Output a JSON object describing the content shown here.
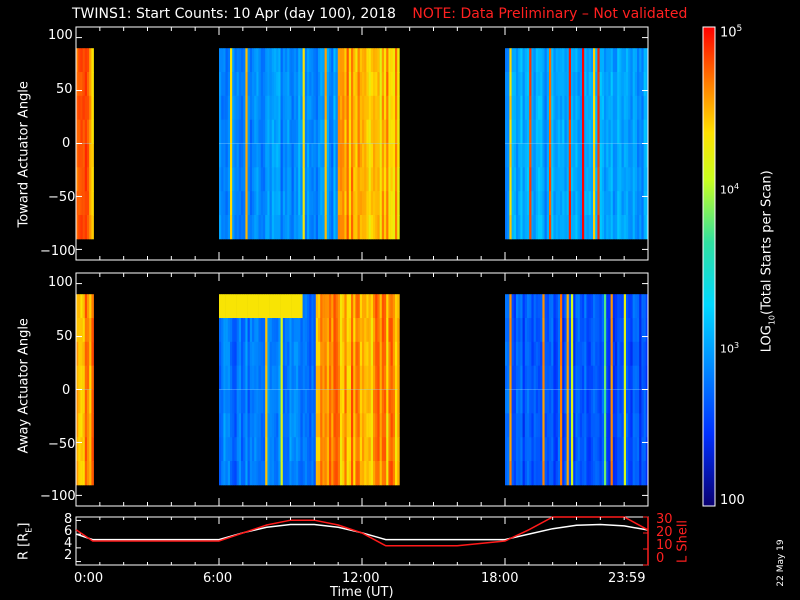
{
  "title": "TWINS1: Start Counts: 10 Apr (day 100), 2018",
  "note": "NOTE: Data Preliminary – Not validated",
  "date_stamp": "22 May 19",
  "chart_data": [
    {
      "type": "heatmap",
      "panel": "toward",
      "ylabel": "Toward Actuator Angle",
      "ylim": [
        -110,
        110
      ],
      "yticks": [
        100,
        50,
        0,
        -50,
        -100
      ],
      "angle_range": [
        -90,
        90
      ],
      "xlim_hours": [
        0,
        24
      ],
      "data_segments_hours": [
        [
          0.0,
          0.65
        ],
        [
          6.0,
          13.5
        ],
        [
          18.0,
          23.99
        ]
      ],
      "background_log10": {
        "seg1": 4.6,
        "seg2_blue_until": 10.9,
        "seg2_blue": 2.9,
        "seg2_orange": 4.5,
        "seg3": 3.0
      }
    },
    {
      "type": "heatmap",
      "panel": "away",
      "ylabel": "Away Actuator Angle",
      "ylim": [
        -110,
        110
      ],
      "yticks": [
        100,
        50,
        0,
        -50,
        -100
      ],
      "angle_range": [
        -90,
        90
      ],
      "xlim_hours": [
        0,
        24
      ],
      "data_segments_hours": [
        [
          0.0,
          0.65
        ],
        [
          6.0,
          13.5
        ],
        [
          18.0,
          23.99
        ]
      ],
      "background_log10": {
        "seg1": 4.6,
        "seg2_blue_until": 10.0,
        "seg2_blue": 2.8,
        "seg2_orange": 4.5,
        "seg3": 2.6
      }
    },
    {
      "type": "line",
      "panel": "orbit",
      "ylabel_left": "R [RE]",
      "ylabel_right": "L Shell",
      "yticks_left": [
        2,
        4,
        6,
        8
      ],
      "yticks_right": [
        0,
        10,
        20,
        30
      ],
      "ylim_left": [
        1.5,
        8.5
      ],
      "ylim_right": [
        0,
        30
      ],
      "x_hours": [
        0,
        0.7,
        2,
        4,
        6,
        7,
        8,
        9,
        10,
        11,
        12,
        13,
        14,
        16,
        18,
        19,
        20,
        21,
        22,
        23,
        23.99
      ],
      "series": [
        {
          "color": "#ffffff",
          "axis": "left",
          "values": [
            6.0,
            5.2,
            5.2,
            5.2,
            5.2,
            6.2,
            7.0,
            7.4,
            7.4,
            7.0,
            6.2,
            5.2,
            5.2,
            5.2,
            5.2,
            6.0,
            6.8,
            7.3,
            7.4,
            7.2,
            6.6
          ]
        },
        {
          "color": "#ff1a1a",
          "axis": "right",
          "values": [
            22,
            15,
            15,
            15,
            15,
            20,
            25,
            28,
            28,
            25,
            20,
            12,
            12,
            12,
            15,
            22,
            30,
            30,
            30,
            30,
            22
          ]
        }
      ]
    }
  ],
  "xaxis": {
    "label": "Time (UT)",
    "ticks": [
      "0:00",
      "6:00",
      "12:00",
      "18:00",
      "23:59"
    ]
  },
  "colorbar": {
    "label": "LOG10(Total Starts per Scan)",
    "min_log": 2,
    "max_log": 5,
    "ticks": [
      "10^5",
      "10^4",
      "10^3",
      "100"
    ]
  }
}
